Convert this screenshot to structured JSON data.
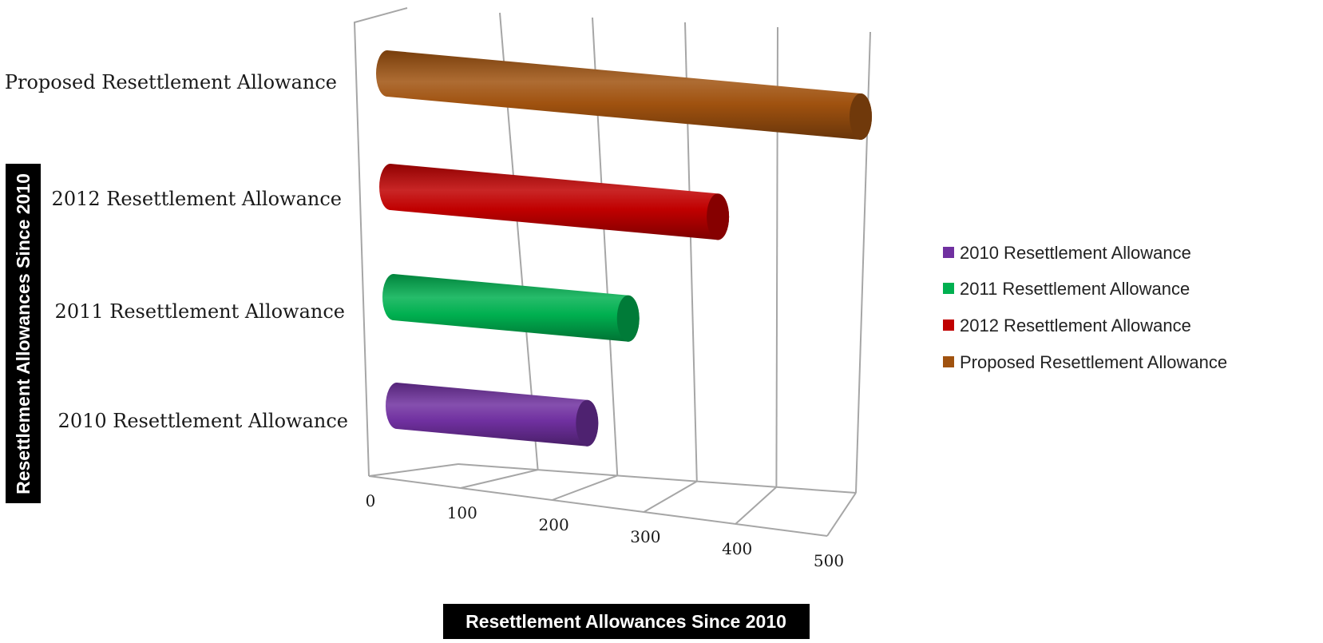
{
  "chart_data": {
    "type": "bar",
    "orientation": "horizontal",
    "style": "3d-cylinder",
    "categories": [
      "2010 Resettlement Allowance",
      "2011 Resettlement Allowance",
      "2012 Resettlement Allowance",
      "Proposed Resettlement Allowance"
    ],
    "series": [
      {
        "name": "2010 Resettlement Allowance",
        "category_index": 0,
        "value": 215,
        "color": "#7030A0"
      },
      {
        "name": "2011 Resettlement Allowance",
        "category_index": 1,
        "value": 265,
        "color": "#00B050"
      },
      {
        "name": "2012 Resettlement Allowance",
        "category_index": 2,
        "value": 370,
        "color": "#C00000"
      },
      {
        "name": "Proposed Resettlement Allowance",
        "category_index": 3,
        "value": 535,
        "color": "#A0520F"
      }
    ],
    "xlim": [
      0,
      500
    ],
    "x_ticks": [
      "0",
      "100",
      "200",
      "300",
      "400",
      "500"
    ],
    "xlabel": "Resettlement Allowances Since 2010",
    "ylabel": "Resettlement Allowances Since 2010",
    "title": "",
    "grid": true,
    "legend_position": "right"
  }
}
